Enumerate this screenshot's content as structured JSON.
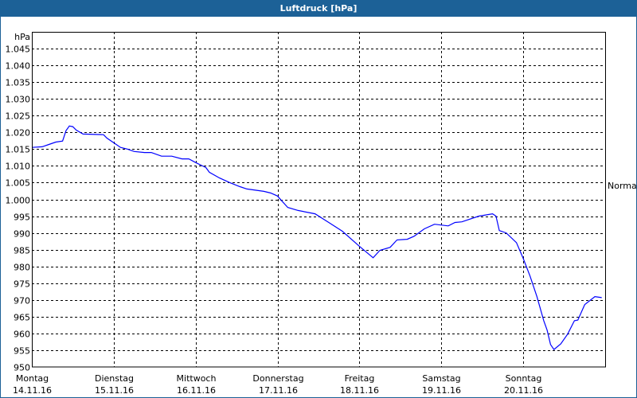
{
  "window": {
    "title": "Luftdruck [hPa]",
    "titlebar_color": "#1c6197"
  },
  "chart_data": {
    "type": "line",
    "title": "Luftdruck [hPa]",
    "ylabel": "hPa",
    "ylim": [
      950,
      1050
    ],
    "yticks": [
      950,
      955,
      960,
      965,
      970,
      975,
      980,
      985,
      990,
      995,
      1000,
      1005,
      1010,
      1015,
      1020,
      1025,
      1030,
      1035,
      1040,
      1045
    ],
    "ytick_labels": [
      "950",
      "955",
      "960",
      "965",
      "970",
      "975",
      "980",
      "985",
      "990",
      "995",
      "1.000",
      "1.005",
      "1.010",
      "1.015",
      "1.020",
      "1.025",
      "1.030",
      "1.035",
      "1.040",
      "1.045"
    ],
    "xticks": [
      {
        "day": "Montag",
        "date": "14.11.16"
      },
      {
        "day": "Dienstag",
        "date": "15.11.16"
      },
      {
        "day": "Mittwoch",
        "date": "16.11.16"
      },
      {
        "day": "Donnerstag",
        "date": "17.11.16"
      },
      {
        "day": "Freitag",
        "date": "18.11.16"
      },
      {
        "day": "Samstag",
        "date": "19.11.16"
      },
      {
        "day": "Sonntag",
        "date": "20.11.16"
      }
    ],
    "xlim": [
      "14.11.16 00:00",
      "21.11.16 00:00"
    ],
    "grid": true,
    "reference_label": "Normal",
    "series": [
      {
        "color": "#0000ff",
        "points": [
          [
            "14.11.16 00:00",
            1015.5
          ],
          [
            "14.11.16 03:00",
            1015.7
          ],
          [
            "14.11.16 05:00",
            1016.4
          ],
          [
            "14.11.16 07:00",
            1017.1
          ],
          [
            "14.11.16 09:00",
            1017.4
          ],
          [
            "14.11.16 10:00",
            1020.5
          ],
          [
            "14.11.16 11:00",
            1021.9
          ],
          [
            "14.11.16 12:00",
            1021.7
          ],
          [
            "14.11.16 13:00",
            1020.7
          ],
          [
            "14.11.16 15:00",
            1019.5
          ],
          [
            "14.11.16 21:00",
            1019.3
          ],
          [
            "14.11.16 22:00",
            1018.3
          ],
          [
            "15.11.16 00:00",
            1016.9
          ],
          [
            "15.11.16 02:00",
            1015.5
          ],
          [
            "15.11.16 04:00",
            1015.0
          ],
          [
            "15.11.16 06:00",
            1014.3
          ],
          [
            "15.11.16 09:00",
            1014.0
          ],
          [
            "15.11.16 11:00",
            1014.0
          ],
          [
            "15.11.16 14:00",
            1012.9
          ],
          [
            "15.11.16 17:00",
            1012.9
          ],
          [
            "15.11.16 20:00",
            1012.1
          ],
          [
            "15.11.16 22:00",
            1012.1
          ],
          [
            "16.11.16 00:00",
            1011.0
          ],
          [
            "16.11.16 03:00",
            1009.5
          ],
          [
            "16.11.16 04:00",
            1008.1
          ],
          [
            "16.11.16 07:00",
            1006.4
          ],
          [
            "16.11.16 10:00",
            1005.0
          ],
          [
            "16.11.16 13:00",
            1003.8
          ],
          [
            "16.11.16 15:00",
            1003.1
          ],
          [
            "16.11.16 20:00",
            1002.4
          ],
          [
            "16.11.16 22:00",
            1001.9
          ],
          [
            "17.11.16 00:00",
            1001.0
          ],
          [
            "17.11.16 01:00",
            999.8
          ],
          [
            "17.11.16 03:00",
            997.6
          ],
          [
            "17.11.16 06:00",
            996.7
          ],
          [
            "17.11.16 11:00",
            995.7
          ],
          [
            "17.11.16 15:00",
            993.1
          ],
          [
            "17.11.16 19:00",
            990.5
          ],
          [
            "18.11.16 00:00",
            986.0
          ],
          [
            "18.11.16 04:00",
            982.6
          ],
          [
            "18.11.16 06:00",
            984.8
          ],
          [
            "18.11.16 09:00",
            985.7
          ],
          [
            "18.11.16 11:00",
            987.9
          ],
          [
            "18.11.16 14:00",
            988.1
          ],
          [
            "18.11.16 16:00",
            989.0
          ],
          [
            "18.11.16 19:00",
            991.2
          ],
          [
            "18.11.16 22:00",
            992.6
          ],
          [
            "19.11.16 02:00",
            992.1
          ],
          [
            "19.11.16 04:00",
            993.1
          ],
          [
            "19.11.16 06:00",
            993.3
          ],
          [
            "19.11.16 11:00",
            995.0
          ],
          [
            "19.11.16 15:00",
            995.7
          ],
          [
            "19.11.16 16:00",
            995.0
          ],
          [
            "19.11.16 17:00",
            990.7
          ],
          [
            "19.11.16 19:00",
            990.0
          ],
          [
            "19.11.16 22:00",
            987.1
          ],
          [
            "20.11.16 00:00",
            982.4
          ],
          [
            "20.11.16 02:00",
            977.1
          ],
          [
            "20.11.16 04:00",
            971.0
          ],
          [
            "20.11.16 06:00",
            963.8
          ],
          [
            "20.11.16 07:00",
            961.0
          ],
          [
            "20.11.16 08:00",
            956.7
          ],
          [
            "20.11.16 09:00",
            955.2
          ],
          [
            "20.11.16 11:00",
            956.9
          ],
          [
            "20.11.16 13:00",
            959.8
          ],
          [
            "20.11.16 15:00",
            963.8
          ],
          [
            "20.11.16 16:00",
            964.0
          ],
          [
            "20.11.16 18:00",
            968.6
          ],
          [
            "20.11.16 21:00",
            971.0
          ],
          [
            "20.11.16 23:00",
            970.7
          ]
        ]
      }
    ]
  }
}
